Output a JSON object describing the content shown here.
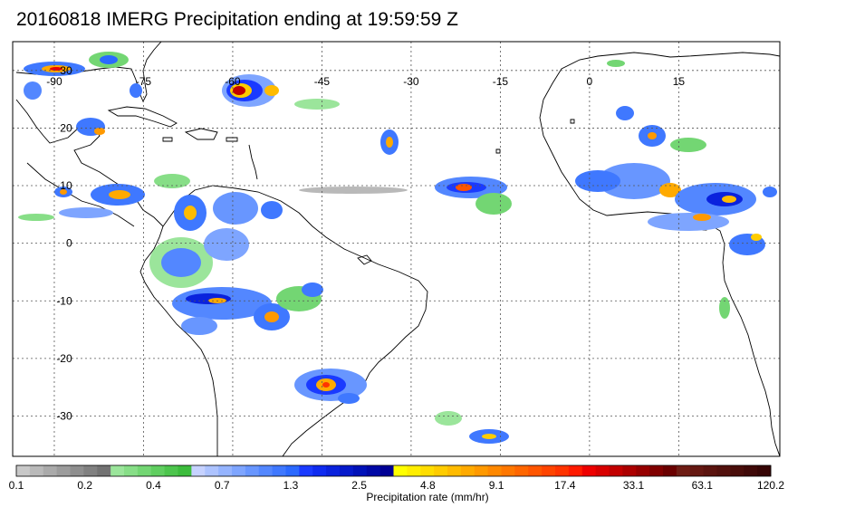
{
  "title": "20160818 IMERG Precipitation ending at 19:59:59 Z",
  "map": {
    "lon_range": [
      -97,
      32
    ],
    "lat_range": [
      -37,
      35
    ],
    "lon_labels": [
      {
        "lon": -90,
        "text": "-90"
      },
      {
        "lon": -75,
        "text": "-75"
      },
      {
        "lon": -60,
        "text": "-60"
      },
      {
        "lon": -45,
        "text": "-45"
      },
      {
        "lon": -30,
        "text": "-30"
      },
      {
        "lon": -15,
        "text": "-15"
      },
      {
        "lon": 0,
        "text": "0"
      },
      {
        "lon": 15,
        "text": "15"
      }
    ],
    "lat_labels": [
      {
        "lat": 30,
        "text": "30"
      },
      {
        "lat": 20,
        "text": "20"
      },
      {
        "lat": 10,
        "text": "10"
      },
      {
        "lat": 0,
        "text": "0"
      },
      {
        "lat": -10,
        "text": "-10"
      },
      {
        "lat": -20,
        "text": "-20"
      },
      {
        "lat": -30,
        "text": "-30"
      }
    ],
    "gridlines": true
  },
  "colorbar": {
    "colors": [
      "#c8c8c8",
      "#b9b9b9",
      "#aaaaaa",
      "#9c9c9c",
      "#8e8e8e",
      "#808080",
      "#727272",
      "#9be59b",
      "#87de87",
      "#73d673",
      "#60ce60",
      "#4dc54d",
      "#3cbc3c",
      "#c6d2ff",
      "#adc3ff",
      "#95b4ff",
      "#7ea5ff",
      "#6896ff",
      "#5387ff",
      "#3f78ff",
      "#2b69ff",
      "#1a3aff",
      "#0f2bf0",
      "#0a22dd",
      "#0519cb",
      "#0011b8",
      "#0008a6",
      "#000095",
      "#ffff00",
      "#ffee00",
      "#ffdd00",
      "#ffcc00",
      "#ffbb00",
      "#ffaa00",
      "#ff9900",
      "#ff8800",
      "#ff7700",
      "#ff6600",
      "#ff5500",
      "#ff4400",
      "#ff3300",
      "#ff1a00",
      "#ee0000",
      "#d80000",
      "#c20000",
      "#ac0000",
      "#960000",
      "#800000",
      "#6a0000",
      "#6e1c14",
      "#651812",
      "#5b140f",
      "#52110d",
      "#490d0a",
      "#3f0908",
      "#360505"
    ],
    "tick_labels": [
      "0.1",
      "0.2",
      "0.4",
      "0.7",
      "1.3",
      "2.5",
      "4.8",
      "9.1",
      "17.4",
      "33.1",
      "63.1",
      "120.2"
    ],
    "unit_label": "Precipitation rate (mm/hr)"
  }
}
